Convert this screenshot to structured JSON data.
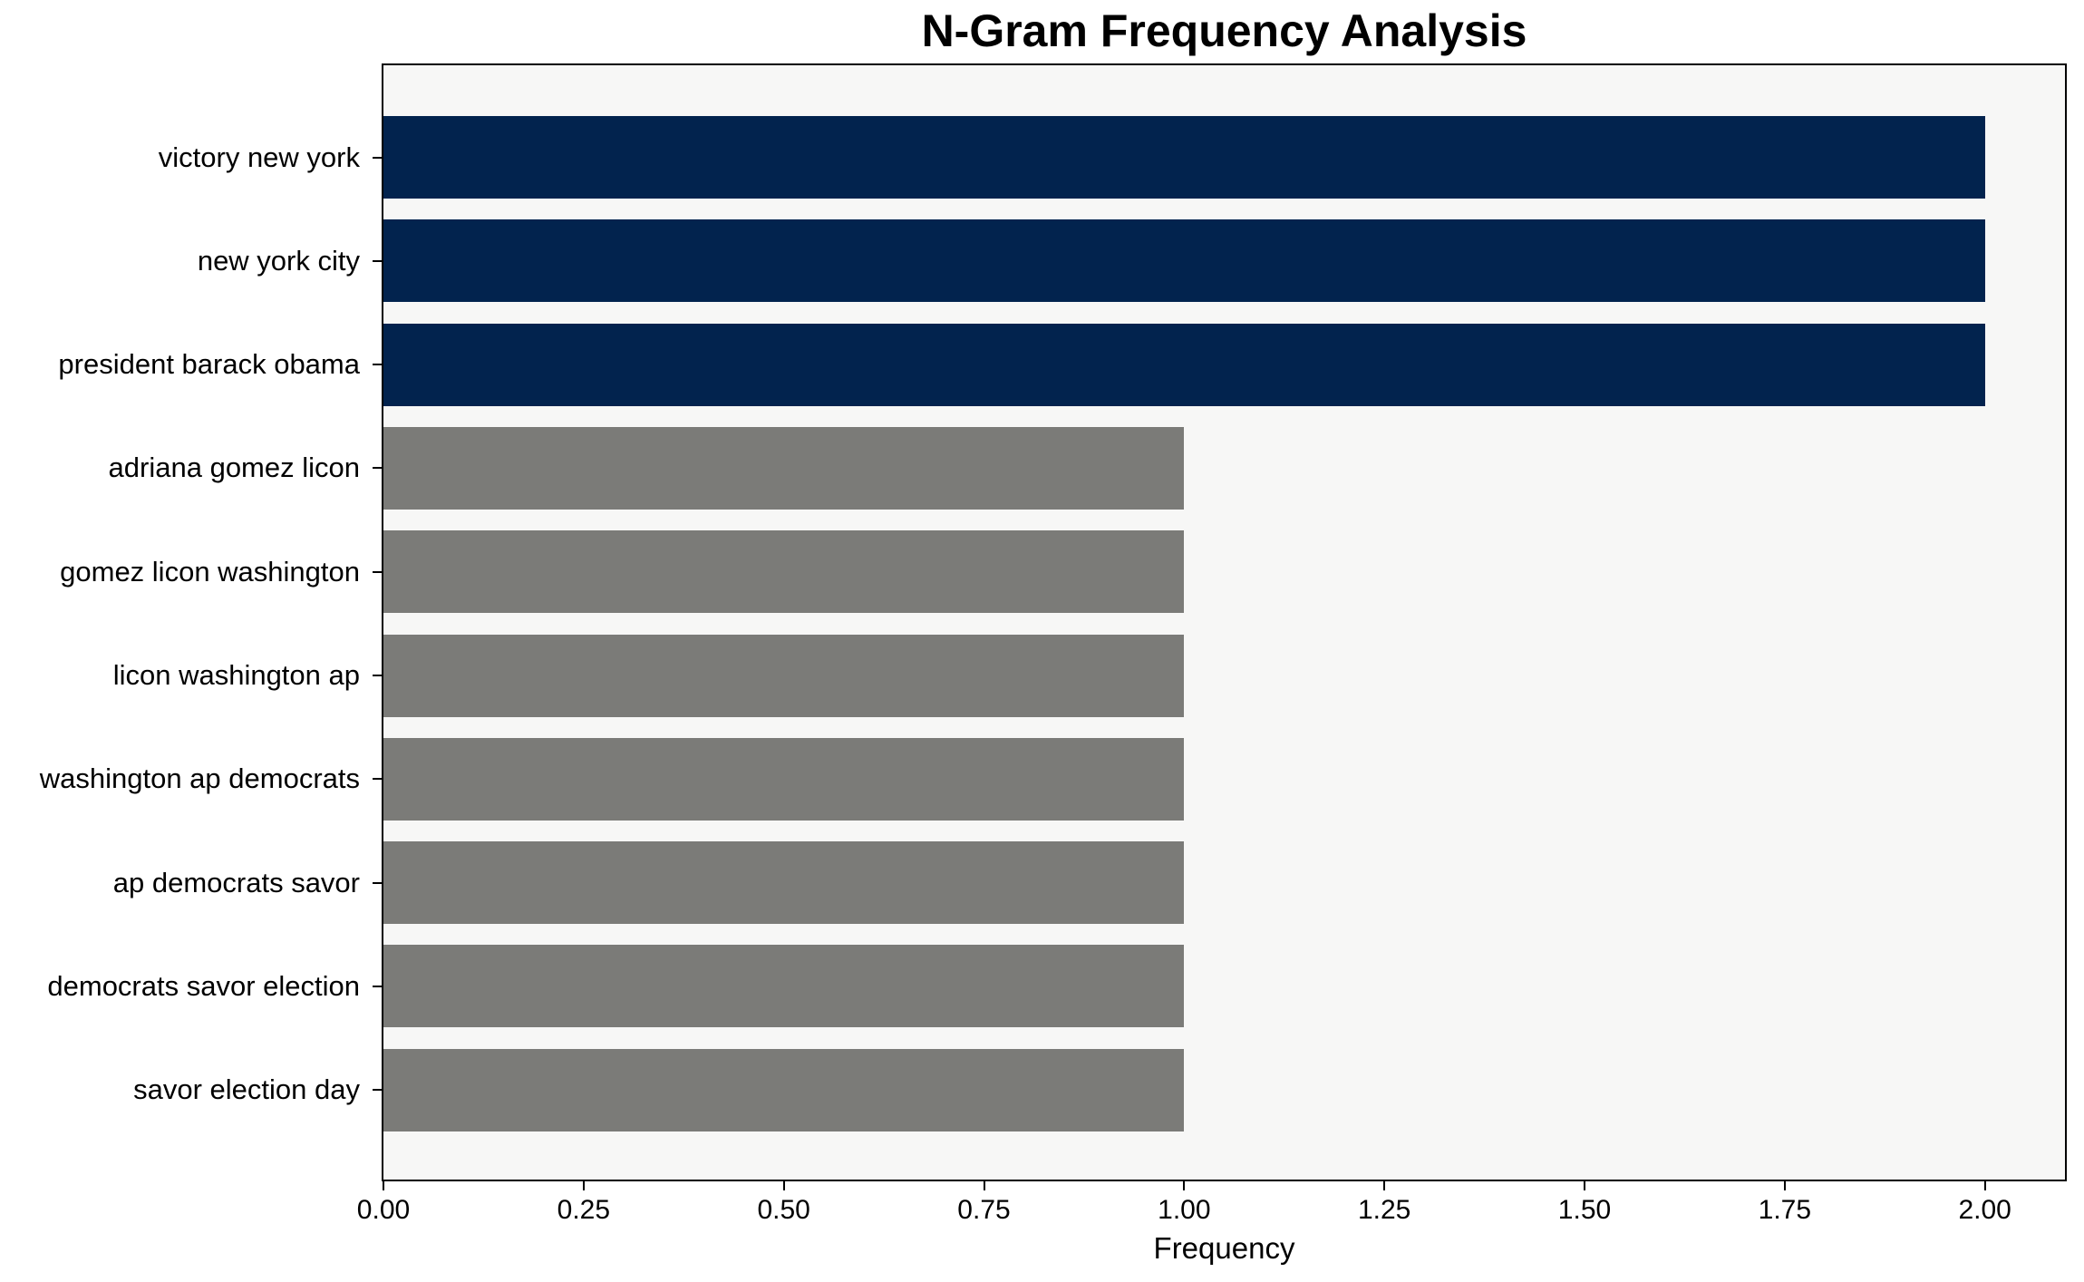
{
  "chart_data": {
    "type": "bar",
    "orientation": "horizontal",
    "title": "N-Gram Frequency Analysis",
    "xlabel": "Frequency",
    "ylabel": "",
    "categories": [
      "victory new york",
      "new york city",
      "president barack obama",
      "adriana gomez licon",
      "gomez licon washington",
      "licon washington ap",
      "washington ap democrats",
      "ap democrats savor",
      "democrats savor election",
      "savor election day"
    ],
    "values": [
      2,
      2,
      2,
      1,
      1,
      1,
      1,
      1,
      1,
      1
    ],
    "bar_colors": [
      "#02234e",
      "#02234e",
      "#02234e",
      "#7b7b78",
      "#7b7b78",
      "#7b7b78",
      "#7b7b78",
      "#7b7b78",
      "#7b7b78",
      "#7b7b78"
    ],
    "xlim": [
      0,
      2.1
    ],
    "xticks": [
      0,
      0.25,
      0.5,
      0.75,
      1.0,
      1.25,
      1.5,
      1.75,
      2.0
    ],
    "xtick_labels": [
      "0.00",
      "0.25",
      "0.50",
      "0.75",
      "1.00",
      "1.25",
      "1.50",
      "1.75",
      "2.00"
    ],
    "grid": false,
    "legend": null,
    "colors": {
      "highlight_bar": "#02234e",
      "default_bar": "#7b7b78",
      "plot_background": "#f7f7f6",
      "figure_background": "#ffffff",
      "axis": "#000000",
      "text": "#000000"
    }
  }
}
